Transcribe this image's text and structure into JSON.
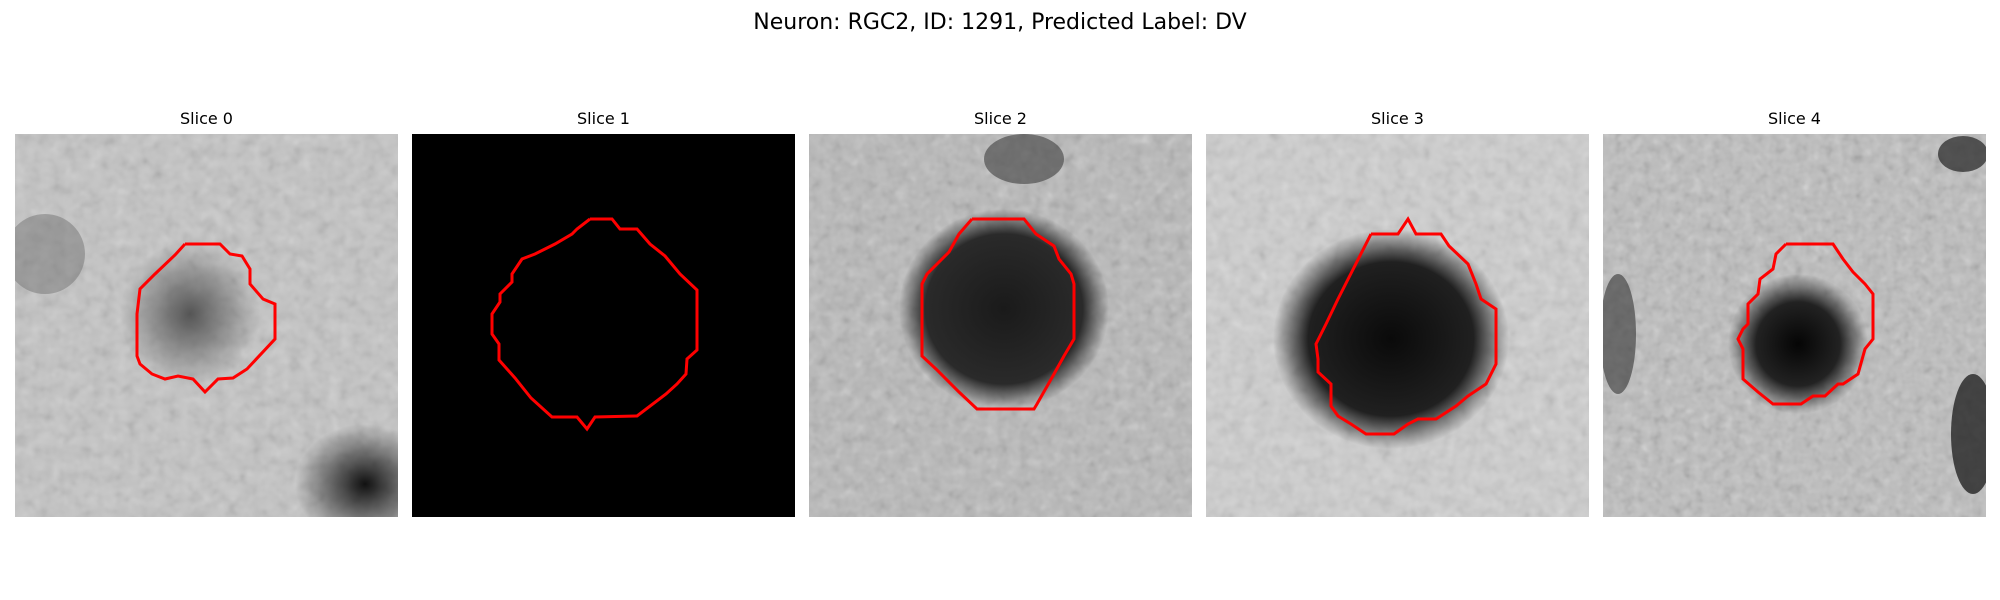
{
  "figure": {
    "title": "Neuron: RGC2, ID: 1291, Predicted Label: DV"
  },
  "slices": [
    {
      "title": "Slice 0"
    },
    {
      "title": "Slice 1"
    },
    {
      "title": "Slice 2"
    },
    {
      "title": "Slice 3"
    },
    {
      "title": "Slice 4"
    }
  ],
  "colors": {
    "contour": "#ff0000",
    "background": "#ffffff"
  }
}
